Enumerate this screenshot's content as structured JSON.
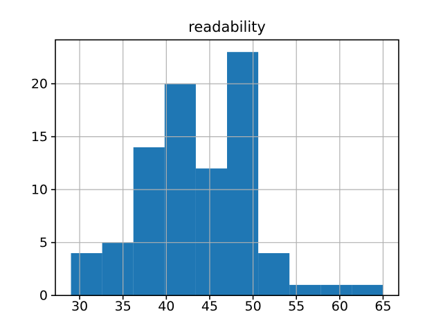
{
  "figure": {
    "background_color": "#ffffff"
  },
  "chart_data": {
    "type": "bar",
    "subtype": "histogram",
    "title": "readability",
    "xlabel": "",
    "ylabel": "",
    "bin_edges": [
      29.0,
      32.6,
      36.2,
      39.8,
      43.4,
      47.0,
      50.6,
      54.2,
      57.8,
      61.4,
      65.0
    ],
    "values": [
      4,
      5,
      14,
      20,
      12,
      23,
      4,
      1,
      1,
      1
    ],
    "x_ticks": [
      30,
      35,
      40,
      45,
      50,
      55,
      60,
      65
    ],
    "y_ticks": [
      0,
      5,
      10,
      15,
      20
    ],
    "xlim": [
      27.2,
      66.8
    ],
    "ylim": [
      0,
      24.15
    ],
    "grid": true,
    "legend": null,
    "bar_color": "#1f77b4",
    "grid_color": "#b0b0b0",
    "spine_color": "#000000",
    "text_color": "#000000"
  }
}
